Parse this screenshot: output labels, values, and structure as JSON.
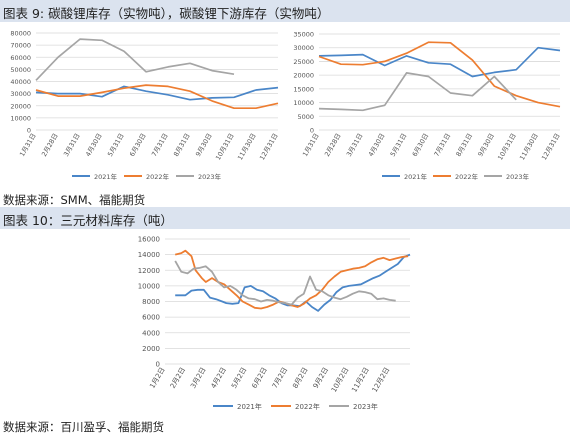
{
  "fig9": {
    "title_left": "图表 9:   碳酸锂库存（实物吨），碳酸锂下游库存（实物吨）",
    "source": "数据来源：SMM、福能期货"
  },
  "fig10": {
    "title": "图表 10：三元材料库存（吨）",
    "source": "数据来源：百川盈孚、福能期货"
  },
  "chart_data": [
    {
      "type": "line",
      "title": "",
      "ylim": [
        0,
        80000
      ],
      "yticks": [
        0,
        10000,
        20000,
        30000,
        40000,
        50000,
        60000,
        70000,
        80000
      ],
      "categories": [
        "1月31日",
        "2月28日",
        "3月31日",
        "4月30日",
        "5月31日",
        "6月30日",
        "7月31日",
        "8月31日",
        "9月30日",
        "10月31日",
        "11月30日",
        "12月31日"
      ],
      "legend_position": "bottom",
      "series": [
        {
          "name": "2021年",
          "color": "#4a86c8",
          "values": [
            31000,
            30000,
            30000,
            27500,
            36000,
            32000,
            29000,
            25000,
            26500,
            27000,
            33000,
            35000
          ]
        },
        {
          "name": "2022年",
          "color": "#ed7d31",
          "values": [
            33000,
            28000,
            28000,
            31000,
            34500,
            37000,
            36000,
            32000,
            24000,
            18000,
            18000,
            22000
          ]
        },
        {
          "name": "2023年",
          "color": "#a5a5a5",
          "values": [
            41000,
            60000,
            75000,
            74000,
            65000,
            48000,
            52000,
            55000,
            49000,
            46000,
            null,
            null
          ]
        }
      ]
    },
    {
      "type": "line",
      "title": "",
      "ylim": [
        0,
        35000
      ],
      "yticks": [
        0,
        5000,
        10000,
        15000,
        20000,
        25000,
        30000,
        35000
      ],
      "categories": [
        "1月31日",
        "2月28日",
        "3月31日",
        "4月30日",
        "5月31日",
        "6月30日",
        "7月31日",
        "8月31日",
        "9月30日",
        "10月31日",
        "11月30日",
        "12月31日"
      ],
      "legend_position": "bottom",
      "series": [
        {
          "name": "2021年",
          "color": "#4a86c8",
          "values": [
            27000,
            27200,
            27500,
            23500,
            27000,
            24500,
            24000,
            19500,
            21000,
            22000,
            30000,
            29000
          ]
        },
        {
          "name": "2022年",
          "color": "#ed7d31",
          "values": [
            26800,
            24000,
            23800,
            25000,
            28000,
            32000,
            31800,
            25500,
            16000,
            12500,
            10000,
            8500
          ]
        },
        {
          "name": "2023年",
          "color": "#a5a5a5",
          "values": [
            7800,
            7500,
            7200,
            9000,
            20800,
            19500,
            13500,
            12500,
            19500,
            11000,
            null,
            null
          ]
        }
      ]
    },
    {
      "type": "line",
      "title": "",
      "ylim": [
        0,
        16000
      ],
      "yticks": [
        0,
        2000,
        4000,
        6000,
        8000,
        10000,
        12000,
        14000,
        16000
      ],
      "categories": [
        "1月2日",
        "2月2日",
        "3月2日",
        "4月2日",
        "5月2日",
        "6月2日",
        "7月2日",
        "8月2日",
        "9月2日",
        "10月2日",
        "11月2日",
        "12月2日"
      ],
      "x_range": [
        1,
        13
      ],
      "legend_position": "bottom",
      "series": [
        {
          "name": "2021年",
          "color": "#4a86c8",
          "x": [
            1.5,
            2.0,
            2.3,
            2.6,
            2.9,
            3.2,
            3.5,
            3.8,
            4.0,
            4.3,
            4.6,
            4.9,
            5.2,
            5.5,
            5.8,
            6.1,
            6.4,
            6.7,
            7.0,
            7.3,
            7.6,
            7.9,
            8.2,
            8.5,
            8.8,
            9.1,
            9.4,
            9.7,
            10.0,
            10.3,
            10.6,
            10.9,
            11.2,
            11.5,
            11.8,
            12.1,
            12.4,
            12.7,
            13.0
          ],
          "values": [
            8800,
            8800,
            9400,
            9500,
            9500,
            8500,
            8300,
            8000,
            7800,
            7700,
            7800,
            9800,
            10000,
            9500,
            9300,
            8800,
            8400,
            7800,
            7500,
            7500,
            7400,
            8000,
            7300,
            6800,
            7600,
            8200,
            9200,
            9800,
            10000,
            10100,
            10200,
            10600,
            11000,
            11300,
            11800,
            12300,
            12800,
            13700,
            14000
          ]
        },
        {
          "name": "2022年",
          "color": "#ed7d31",
          "x": [
            1.5,
            1.8,
            2.0,
            2.3,
            2.5,
            2.8,
            3.0,
            3.3,
            3.6,
            3.9,
            4.2,
            4.5,
            4.8,
            5.1,
            5.4,
            5.7,
            6.0,
            6.3,
            6.6,
            6.9,
            7.2,
            7.5,
            7.8,
            8.1,
            8.4,
            8.7,
            9.0,
            9.3,
            9.6,
            9.9,
            10.2,
            10.5,
            10.8,
            11.1,
            11.4,
            11.7,
            12.0,
            12.3,
            12.6,
            12.9
          ],
          "values": [
            14000,
            14200,
            14500,
            13800,
            12000,
            11000,
            10500,
            11000,
            10500,
            10200,
            9500,
            8800,
            8000,
            7600,
            7200,
            7100,
            7300,
            7600,
            8000,
            7800,
            7500,
            7300,
            7700,
            8400,
            8800,
            9500,
            10500,
            11200,
            11800,
            12000,
            12200,
            12300,
            12500,
            13000,
            13400,
            13600,
            13300,
            13500,
            13700,
            13800
          ]
        },
        {
          "name": "2023年",
          "color": "#a5a5a5",
          "x": [
            1.5,
            1.8,
            2.1,
            2.4,
            2.7,
            3.0,
            3.3,
            3.6,
            3.9,
            4.2,
            4.5,
            4.8,
            5.1,
            5.4,
            5.7,
            6.0,
            6.3,
            6.6,
            6.9,
            7.2,
            7.5,
            7.8,
            8.1,
            8.4,
            8.7,
            9.0,
            9.3,
            9.6,
            9.9,
            10.2,
            10.5,
            10.8,
            11.1,
            11.4,
            11.7,
            12.0,
            12.3
          ],
          "values": [
            13200,
            11800,
            11600,
            12200,
            12300,
            12500,
            11800,
            10500,
            9800,
            10000,
            9500,
            8800,
            8400,
            8300,
            8000,
            8200,
            8100,
            7900,
            7800,
            7600,
            8500,
            9000,
            11200,
            9500,
            9300,
            8800,
            8500,
            8300,
            8600,
            9000,
            9300,
            9200,
            9000,
            8300,
            8400,
            8200,
            8100
          ]
        }
      ]
    }
  ]
}
